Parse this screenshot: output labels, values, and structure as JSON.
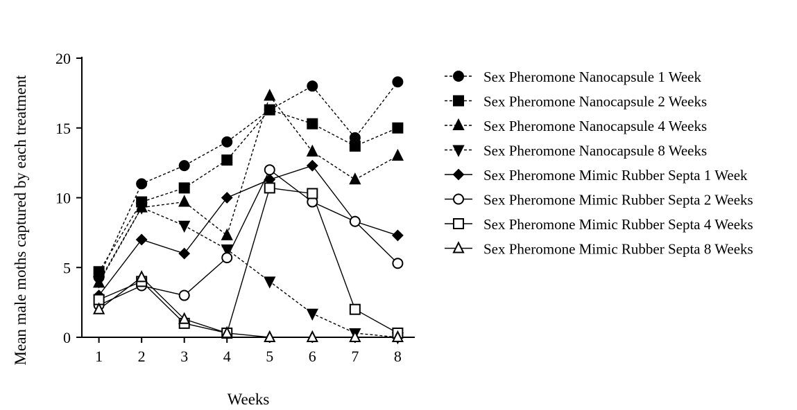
{
  "chart_data": {
    "type": "line",
    "xlabel": "Weeks",
    "ylabel": "Mean male moths captured by each treatment",
    "x": [
      1,
      2,
      3,
      4,
      5,
      6,
      7,
      8
    ],
    "xlim": [
      0.6,
      8.4
    ],
    "ylim": [
      0,
      20
    ],
    "x_ticks": [
      "1",
      "2",
      "3",
      "4",
      "5",
      "6",
      "7",
      "8"
    ],
    "y_ticks": [
      "0",
      "5",
      "10",
      "15",
      "20"
    ],
    "grid": false,
    "legend_position": "right",
    "series": [
      {
        "name": "Sex Pheromone Nanocapsule 1 Week",
        "marker": "circle",
        "filled": true,
        "dashed": true,
        "values": [
          4.3,
          11.0,
          12.3,
          14.0,
          16.3,
          18.0,
          14.3,
          18.3
        ]
      },
      {
        "name": "Sex Pheromone Nanocapsule 2 Weeks",
        "marker": "square",
        "filled": true,
        "dashed": true,
        "values": [
          4.7,
          9.7,
          10.7,
          12.7,
          16.3,
          15.3,
          13.7,
          15.0
        ]
      },
      {
        "name": "Sex Pheromone Nanocapsule 4 Weeks",
        "marker": "triangle-up",
        "filled": true,
        "dashed": true,
        "values": [
          3.9,
          9.3,
          9.7,
          7.3,
          17.3,
          13.3,
          11.3,
          13.0
        ]
      },
      {
        "name": "Sex Pheromone Nanocapsule 8 Weeks",
        "marker": "triangle-down",
        "filled": true,
        "dashed": true,
        "values": [
          4.0,
          9.3,
          8.0,
          6.3,
          4.0,
          1.7,
          0.3,
          0.0
        ]
      },
      {
        "name": "Sex Pheromone Mimic Rubber Septa 1 Week",
        "marker": "diamond",
        "filled": true,
        "dashed": false,
        "values": [
          3.0,
          7.0,
          6.0,
          10.0,
          11.3,
          12.3,
          8.3,
          7.3
        ]
      },
      {
        "name": "Sex Pheromone Mimic Rubber Septa 2 Weeks",
        "marker": "circle",
        "filled": false,
        "dashed": false,
        "values": [
          2.3,
          3.7,
          3.0,
          5.7,
          12.0,
          9.7,
          8.3,
          5.3
        ]
      },
      {
        "name": "Sex Pheromone Mimic Rubber Septa 4 Weeks",
        "marker": "square",
        "filled": false,
        "dashed": false,
        "values": [
          2.7,
          4.0,
          1.0,
          0.3,
          10.7,
          10.3,
          2.0,
          0.3
        ]
      },
      {
        "name": "Sex Pheromone Mimic Rubber Septa 8 Weeks",
        "marker": "triangle-up",
        "filled": false,
        "dashed": false,
        "values": [
          2.0,
          4.3,
          1.3,
          0.3,
          0.0,
          0.0,
          0.0,
          0.0
        ]
      }
    ]
  }
}
